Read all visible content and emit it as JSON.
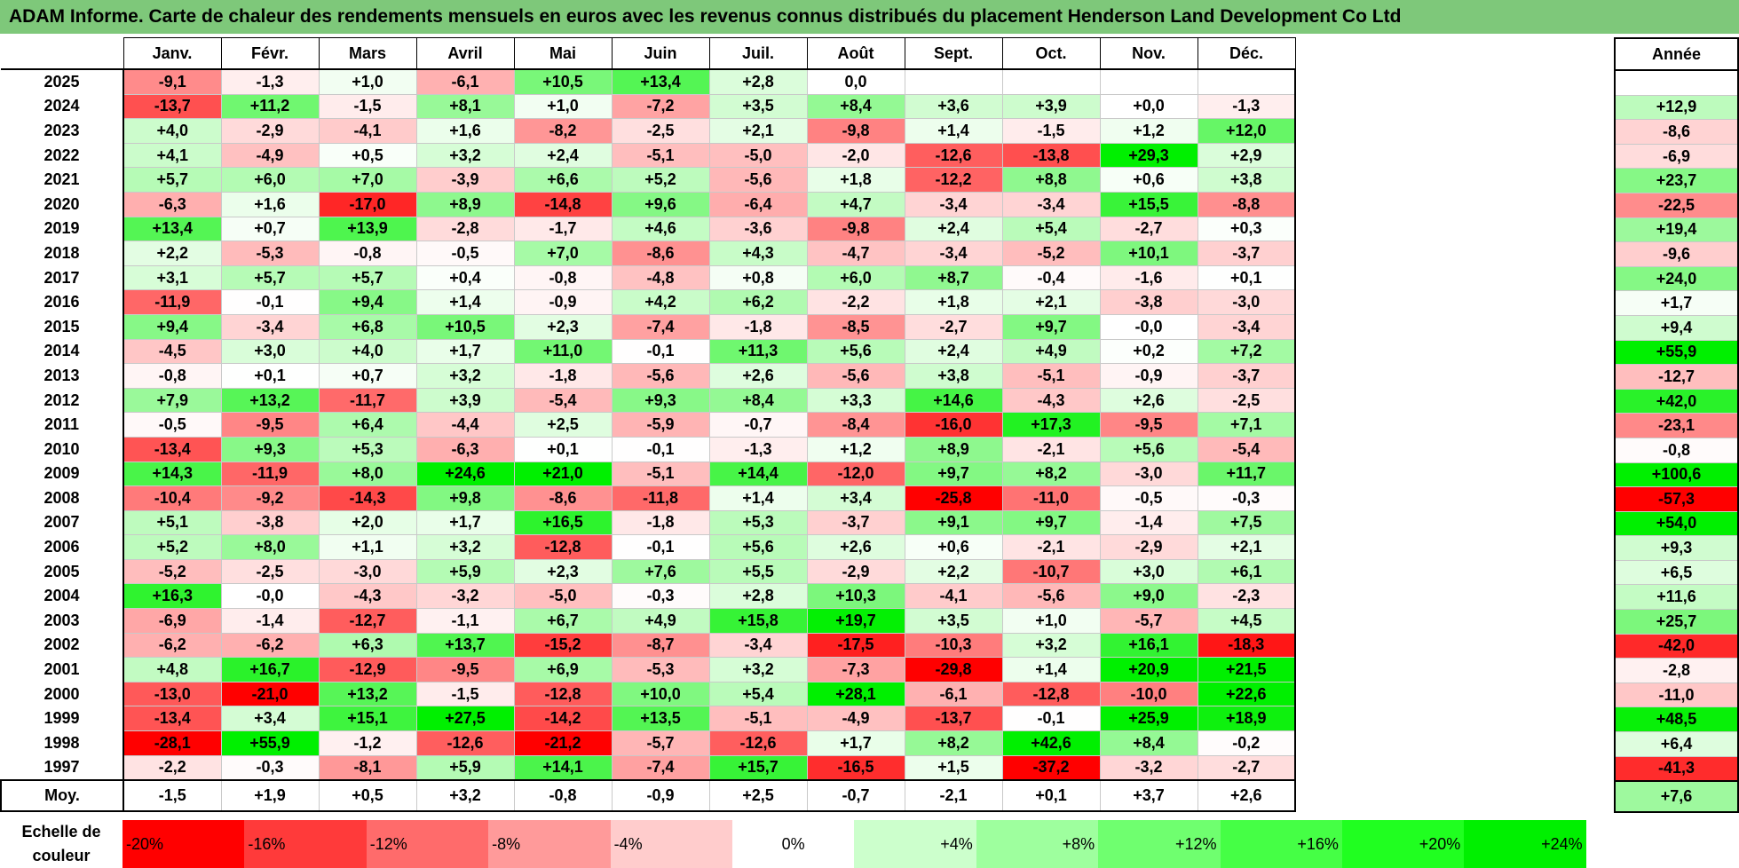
{
  "title": "ADAM Informe. Carte de chaleur des rendements mensuels en euros avec les revenus connus distribués du placement Henderson Land Development Co Ltd",
  "chart_data": {
    "type": "heatmap",
    "title": "ADAM Informe. Carte de chaleur des rendements mensuels en euros avec les revenus connus distribués du placement Henderson Land Development Co Ltd",
    "columns": [
      "Janv.",
      "Févr.",
      "Mars",
      "Avril",
      "Mai",
      "Juin",
      "Juil.",
      "Août",
      "Sept.",
      "Oct.",
      "Nov.",
      "Déc."
    ],
    "annual_header": "Année",
    "rows": [
      {
        "year": "2025",
        "values": [
          "-9,1",
          "-1,3",
          "+1,0",
          "-6,1",
          "+10,5",
          "+13,4",
          "+2,8",
          "0,0",
          "",
          "",
          "",
          ""
        ],
        "annual": ""
      },
      {
        "year": "2024",
        "values": [
          "-13,7",
          "+11,2",
          "-1,5",
          "+8,1",
          "+1,0",
          "-7,2",
          "+3,5",
          "+8,4",
          "+3,6",
          "+3,9",
          "+0,0",
          "-1,3"
        ],
        "annual": "+12,9"
      },
      {
        "year": "2023",
        "values": [
          "+4,0",
          "-2,9",
          "-4,1",
          "+1,6",
          "-8,2",
          "-2,5",
          "+2,1",
          "-9,8",
          "+1,4",
          "-1,5",
          "+1,2",
          "+12,0"
        ],
        "annual": "-8,6"
      },
      {
        "year": "2022",
        "values": [
          "+4,1",
          "-4,9",
          "+0,5",
          "+3,2",
          "+2,4",
          "-5,1",
          "-5,0",
          "-2,0",
          "-12,6",
          "-13,8",
          "+29,3",
          "+2,9"
        ],
        "annual": "-6,9"
      },
      {
        "year": "2021",
        "values": [
          "+5,7",
          "+6,0",
          "+7,0",
          "-3,9",
          "+6,6",
          "+5,2",
          "-5,6",
          "+1,8",
          "-12,2",
          "+8,8",
          "+0,6",
          "+3,8"
        ],
        "annual": "+23,7"
      },
      {
        "year": "2020",
        "values": [
          "-6,3",
          "+1,6",
          "-17,0",
          "+8,9",
          "-14,8",
          "+9,6",
          "-6,4",
          "+4,7",
          "-3,4",
          "-3,4",
          "+15,5",
          "-8,8"
        ],
        "annual": "-22,5"
      },
      {
        "year": "2019",
        "values": [
          "+13,4",
          "+0,7",
          "+13,9",
          "-2,8",
          "-1,7",
          "+4,6",
          "-3,6",
          "-9,8",
          "+2,4",
          "+5,4",
          "-2,7",
          "+0,3"
        ],
        "annual": "+19,4"
      },
      {
        "year": "2018",
        "values": [
          "+2,2",
          "-5,3",
          "-0,8",
          "-0,5",
          "+7,0",
          "-8,6",
          "+4,3",
          "-4,7",
          "-3,4",
          "-5,2",
          "+10,1",
          "-3,7"
        ],
        "annual": "-9,6"
      },
      {
        "year": "2017",
        "values": [
          "+3,1",
          "+5,7",
          "+5,7",
          "+0,4",
          "-0,8",
          "-4,8",
          "+0,8",
          "+6,0",
          "+8,7",
          "-0,4",
          "-1,6",
          "+0,1"
        ],
        "annual": "+24,0"
      },
      {
        "year": "2016",
        "values": [
          "-11,9",
          "-0,1",
          "+9,4",
          "+1,4",
          "-0,9",
          "+4,2",
          "+6,2",
          "-2,2",
          "+1,8",
          "+2,1",
          "-3,8",
          "-3,0"
        ],
        "annual": "+1,7"
      },
      {
        "year": "2015",
        "values": [
          "+9,4",
          "-3,4",
          "+6,8",
          "+10,5",
          "+2,3",
          "-7,4",
          "-1,8",
          "-8,5",
          "-2,7",
          "+9,7",
          "-0,0",
          "-3,4"
        ],
        "annual": "+9,4"
      },
      {
        "year": "2014",
        "values": [
          "-4,5",
          "+3,0",
          "+4,0",
          "+1,7",
          "+11,0",
          "-0,1",
          "+11,3",
          "+5,6",
          "+2,4",
          "+4,9",
          "+0,2",
          "+7,2"
        ],
        "annual": "+55,9"
      },
      {
        "year": "2013",
        "values": [
          "-0,8",
          "+0,1",
          "+0,7",
          "+3,2",
          "-1,8",
          "-5,6",
          "+2,6",
          "-5,6",
          "+3,8",
          "-5,1",
          "-0,9",
          "-3,7"
        ],
        "annual": "-12,7"
      },
      {
        "year": "2012",
        "values": [
          "+7,9",
          "+13,2",
          "-11,7",
          "+3,9",
          "-5,4",
          "+9,3",
          "+8,4",
          "+3,3",
          "+14,6",
          "-4,3",
          "+2,6",
          "-2,5"
        ],
        "annual": "+42,0"
      },
      {
        "year": "2011",
        "values": [
          "-0,5",
          "-9,5",
          "+6,4",
          "-4,4",
          "+2,5",
          "-5,9",
          "-0,7",
          "-8,4",
          "-16,0",
          "+17,3",
          "-9,5",
          "+7,1"
        ],
        "annual": "-23,1"
      },
      {
        "year": "2010",
        "values": [
          "-13,4",
          "+9,3",
          "+5,3",
          "-6,3",
          "+0,1",
          "-0,1",
          "-1,3",
          "+1,2",
          "+8,9",
          "-2,1",
          "+5,6",
          "-5,4"
        ],
        "annual": "-0,8"
      },
      {
        "year": "2009",
        "values": [
          "+14,3",
          "-11,9",
          "+8,0",
          "+24,6",
          "+21,0",
          "-5,1",
          "+14,4",
          "-12,0",
          "+9,7",
          "+8,2",
          "-3,0",
          "+11,7"
        ],
        "annual": "+100,6"
      },
      {
        "year": "2008",
        "values": [
          "-10,4",
          "-9,2",
          "-14,3",
          "+9,8",
          "-8,6",
          "-11,8",
          "+1,4",
          "+3,4",
          "-25,8",
          "-11,0",
          "-0,5",
          "-0,3"
        ],
        "annual": "-57,3"
      },
      {
        "year": "2007",
        "values": [
          "+5,1",
          "-3,8",
          "+2,0",
          "+1,7",
          "+16,5",
          "-1,8",
          "+5,3",
          "-3,7",
          "+9,1",
          "+9,7",
          "-1,4",
          "+7,5"
        ],
        "annual": "+54,0"
      },
      {
        "year": "2006",
        "values": [
          "+5,2",
          "+8,0",
          "+1,1",
          "+3,2",
          "-12,8",
          "-0,1",
          "+5,6",
          "+2,6",
          "+0,6",
          "-2,1",
          "-2,9",
          "+2,1"
        ],
        "annual": "+9,3"
      },
      {
        "year": "2005",
        "values": [
          "-5,2",
          "-2,5",
          "-3,0",
          "+5,9",
          "+2,3",
          "+7,6",
          "+5,5",
          "-2,9",
          "+2,2",
          "-10,7",
          "+3,0",
          "+6,1"
        ],
        "annual": "+6,5"
      },
      {
        "year": "2004",
        "values": [
          "+16,3",
          "-0,0",
          "-4,3",
          "-3,2",
          "-5,0",
          "-0,3",
          "+2,8",
          "+10,3",
          "-4,1",
          "-5,6",
          "+9,0",
          "-2,3"
        ],
        "annual": "+11,6"
      },
      {
        "year": "2003",
        "values": [
          "-6,9",
          "-1,4",
          "-12,7",
          "-1,1",
          "+6,7",
          "+4,9",
          "+15,8",
          "+19,7",
          "+3,5",
          "+1,0",
          "-5,7",
          "+4,5"
        ],
        "annual": "+25,7"
      },
      {
        "year": "2002",
        "values": [
          "-6,2",
          "-6,2",
          "+6,3",
          "+13,7",
          "-15,2",
          "-8,7",
          "-3,4",
          "-17,5",
          "-10,3",
          "+3,2",
          "+16,1",
          "-18,3"
        ],
        "annual": "-42,0"
      },
      {
        "year": "2001",
        "values": [
          "+4,8",
          "+16,7",
          "-12,9",
          "-9,5",
          "+6,9",
          "-5,3",
          "+3,2",
          "-7,3",
          "-29,8",
          "+1,4",
          "+20,9",
          "+21,5"
        ],
        "annual": "-2,8"
      },
      {
        "year": "2000",
        "values": [
          "-13,0",
          "-21,0",
          "+13,2",
          "-1,5",
          "-12,8",
          "+10,0",
          "+5,4",
          "+28,1",
          "-6,1",
          "-12,8",
          "-10,0",
          "+22,6"
        ],
        "annual": "-11,0"
      },
      {
        "year": "1999",
        "values": [
          "-13,4",
          "+3,4",
          "+15,1",
          "+27,5",
          "-14,2",
          "+13,5",
          "-5,1",
          "-4,9",
          "-13,7",
          "-0,1",
          "+25,9",
          "+18,9"
        ],
        "annual": "+48,5"
      },
      {
        "year": "1998",
        "values": [
          "-28,1",
          "+55,9",
          "-1,2",
          "-12,6",
          "-21,2",
          "-5,7",
          "-12,6",
          "+1,7",
          "+8,2",
          "+42,6",
          "+8,4",
          "-0,2"
        ],
        "annual": "+6,4"
      },
      {
        "year": "1997",
        "values": [
          "-2,2",
          "-0,3",
          "-8,1",
          "+5,9",
          "+14,1",
          "-7,4",
          "+15,7",
          "-16,5",
          "+1,5",
          "-37,2",
          "-3,2",
          "-2,7"
        ],
        "annual": "-41,3"
      }
    ],
    "average": {
      "label": "Moy.",
      "values": [
        "-1,5",
        "+1,9",
        "+0,5",
        "+3,2",
        "-0,8",
        "-0,9",
        "+2,5",
        "-0,7",
        "-2,1",
        "+0,1",
        "+3,7",
        "+2,6"
      ],
      "annual": "+7,6"
    },
    "color_scale": {
      "label": "Echelle de couleur",
      "stops": [
        {
          "label": "-20%",
          "value": -20,
          "color": "#ff0000"
        },
        {
          "label": "-16%",
          "value": -16,
          "color": "#ff3a3a"
        },
        {
          "label": "-12%",
          "value": -12,
          "color": "#ff6b6b"
        },
        {
          "label": "-8%",
          "value": -8,
          "color": "#ff9a9a"
        },
        {
          "label": "-4%",
          "value": -4,
          "color": "#ffcccc"
        },
        {
          "label": "0%",
          "value": 0,
          "color": "#ffffff"
        },
        {
          "label": "+4%",
          "value": 4,
          "color": "#ccffcc"
        },
        {
          "label": "+8%",
          "value": 8,
          "color": "#9eff9e"
        },
        {
          "label": "+12%",
          "value": 12,
          "color": "#6fff6f"
        },
        {
          "label": "+16%",
          "value": 16,
          "color": "#45ff45"
        },
        {
          "label": "+20%",
          "value": 20,
          "color": "#20ff20"
        },
        {
          "label": "+24%",
          "value": 24,
          "color": "#00f000"
        }
      ]
    },
    "annual_color_range": [
      -50,
      50
    ]
  }
}
